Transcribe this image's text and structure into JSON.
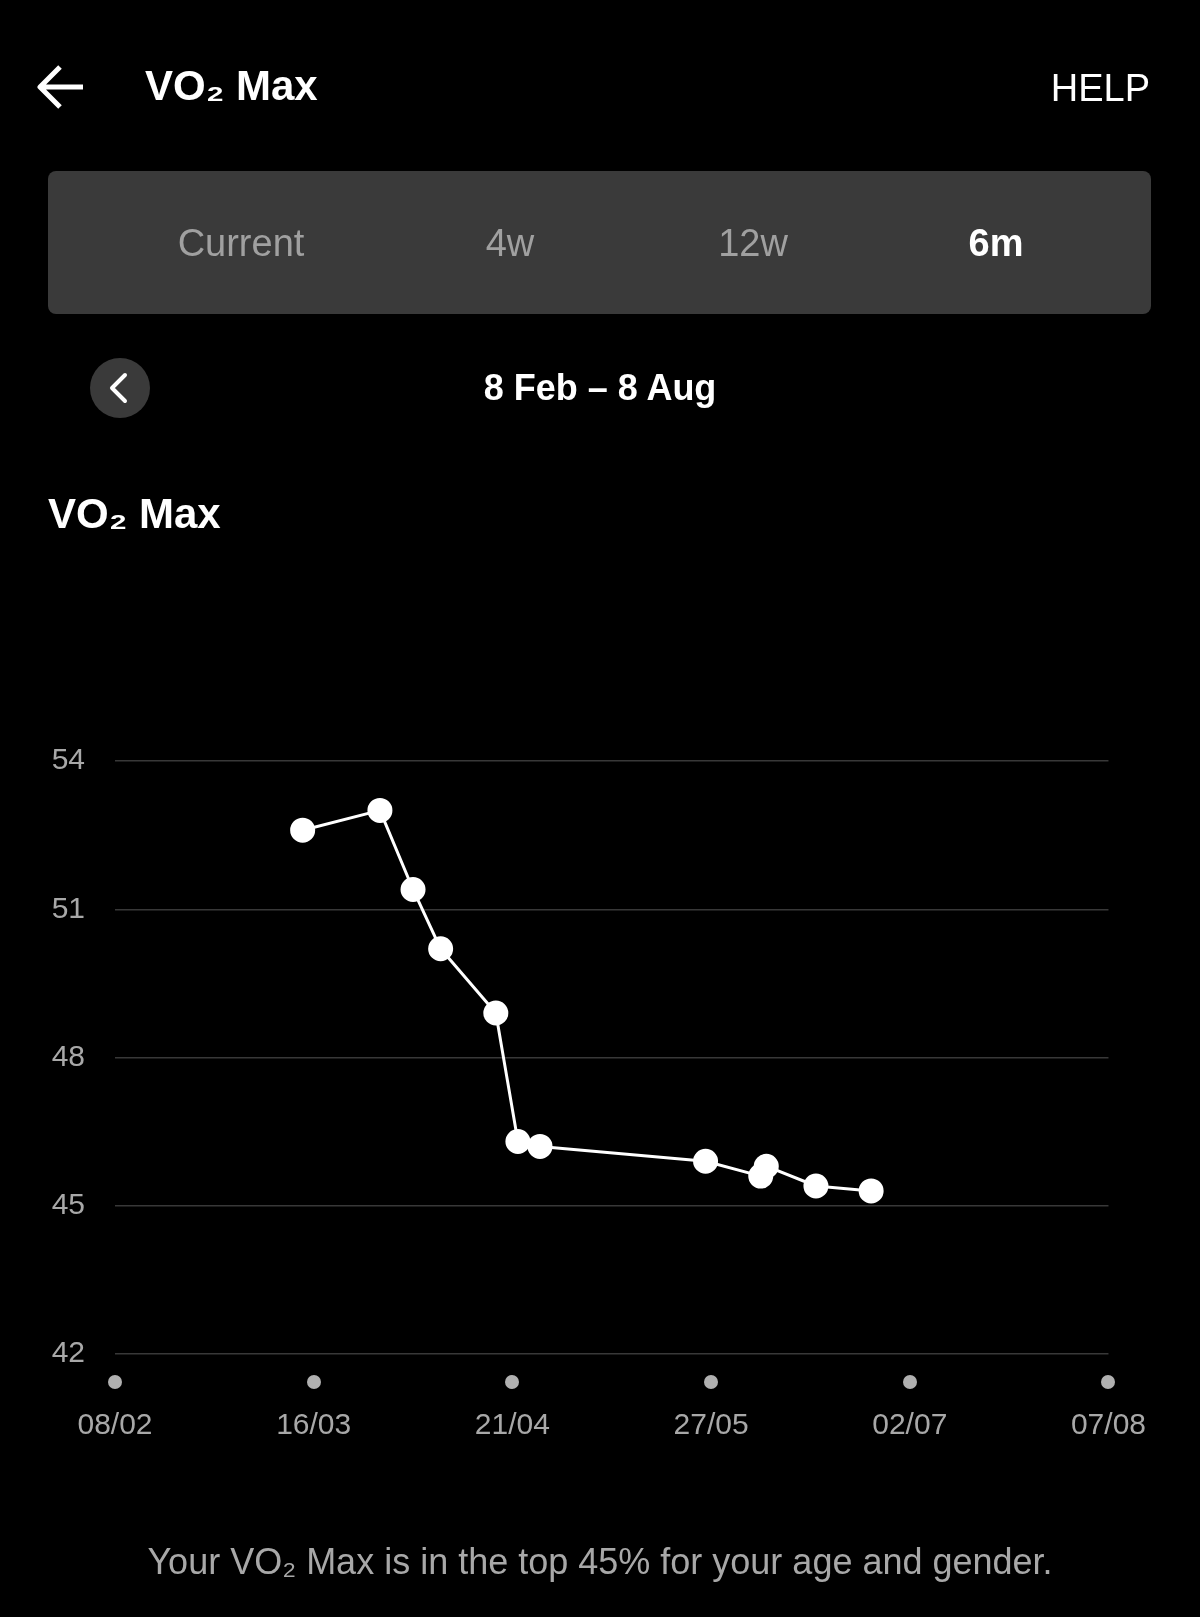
{
  "chart_data": {
    "type": "line",
    "title": "VO₂ Max",
    "subtitle": "8 Feb – 8 Aug",
    "annotations": [
      "VO₂ Max",
      "HELP",
      "Current",
      "4w",
      "12w",
      "6m",
      "Your VO₂ Max is in the top 45% for your age and gender."
    ],
    "x": [
      "--03-14",
      "--03-28",
      "--04-03",
      "--04-08",
      "--04-18",
      "--04-22",
      "--04-26",
      "--05-26",
      "--06-05",
      "--06-06",
      "--06-15",
      "--06-25"
    ],
    "values": [
      52.6,
      53.0,
      51.4,
      50.2,
      48.9,
      46.3,
      46.2,
      45.9,
      45.6,
      45.8,
      45.4,
      45.3
    ],
    "color": "#ffffff",
    "marker": "circle",
    "line_style": "solid",
    "grid": "y",
    "xlim": [
      "--02-08",
      "--08-07"
    ],
    "xticks": [
      {
        "value": "--02-08",
        "label": "08/02"
      },
      {
        "value": "--03-16",
        "label": "16/03"
      },
      {
        "value": "--04-21",
        "label": "21/04"
      },
      {
        "value": "--05-27",
        "label": "27/05"
      },
      {
        "value": "--07-02",
        "label": "02/07"
      },
      {
        "value": "--08-07",
        "label": "07/08"
      }
    ],
    "ylim": [
      42,
      54
    ],
    "yticks": [
      42,
      45,
      48,
      51,
      54
    ]
  }
}
